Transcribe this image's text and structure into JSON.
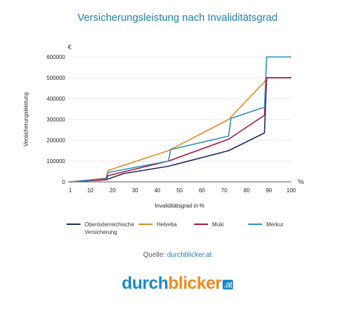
{
  "chart_data": {
    "type": "line",
    "title": "Versicherungsleistung nach Invaliditätsgrad",
    "ylabel": "Versicherungsleistung",
    "yunit": "€",
    "xlabel": "Invaliditätsgrad in %",
    "xunit": "%",
    "xlim": [
      0,
      100
    ],
    "ylim": [
      0,
      600000
    ],
    "xticks": [
      "1",
      "10",
      "20",
      "30",
      "40",
      "50",
      "60",
      "70",
      "80",
      "90",
      "100"
    ],
    "yticks": [
      "0",
      "100000",
      "200000",
      "300000",
      "400000",
      "500000",
      "600000"
    ],
    "legend_position": "bottom",
    "series": [
      {
        "name": "Oberösterreichische Versicherung",
        "color": "#1a2a5e",
        "points": [
          [
            1,
            0
          ],
          [
            17,
            10000
          ],
          [
            25,
            40000
          ],
          [
            45,
            75000
          ],
          [
            72,
            150000
          ],
          [
            88,
            235000
          ],
          [
            89,
            500000
          ],
          [
            100,
            500000
          ]
        ]
      },
      {
        "name": "Helvetia",
        "color": "#e08a1e",
        "points": [
          [
            1,
            0
          ],
          [
            17,
            18000
          ],
          [
            18,
            55000
          ],
          [
            45,
            150000
          ],
          [
            72,
            300000
          ],
          [
            88,
            480000
          ],
          [
            89,
            500000
          ],
          [
            100,
            500000
          ]
        ]
      },
      {
        "name": "Muki",
        "color": "#a8123e",
        "points": [
          [
            1,
            0
          ],
          [
            17,
            10000
          ],
          [
            18,
            30000
          ],
          [
            45,
            100000
          ],
          [
            72,
            205000
          ],
          [
            88,
            320000
          ],
          [
            89,
            500000
          ],
          [
            100,
            500000
          ]
        ]
      },
      {
        "name": "Merkur",
        "color": "#2a8cc4",
        "points": [
          [
            1,
            0
          ],
          [
            17,
            15000
          ],
          [
            18,
            45000
          ],
          [
            45,
            100000
          ],
          [
            46,
            155000
          ],
          [
            72,
            220000
          ],
          [
            73,
            305000
          ],
          [
            87,
            355000
          ],
          [
            88,
            355000
          ],
          [
            89,
            600000
          ],
          [
            100,
            600000
          ]
        ]
      }
    ]
  },
  "legend": {
    "items": [
      {
        "label": "Oberösterreichische Versicherung",
        "color": "#1a2a5e"
      },
      {
        "label": "Helvetia",
        "color": "#e08a1e"
      },
      {
        "label": "Muki",
        "color": "#a8123e"
      },
      {
        "label": "Merkur",
        "color": "#2a8cc4"
      }
    ]
  },
  "source": {
    "prefix": "Quelle: ",
    "link": "durchblicker.at"
  },
  "logo": {
    "part1": "durch",
    "part2": "blicker",
    "part3": ".at"
  }
}
